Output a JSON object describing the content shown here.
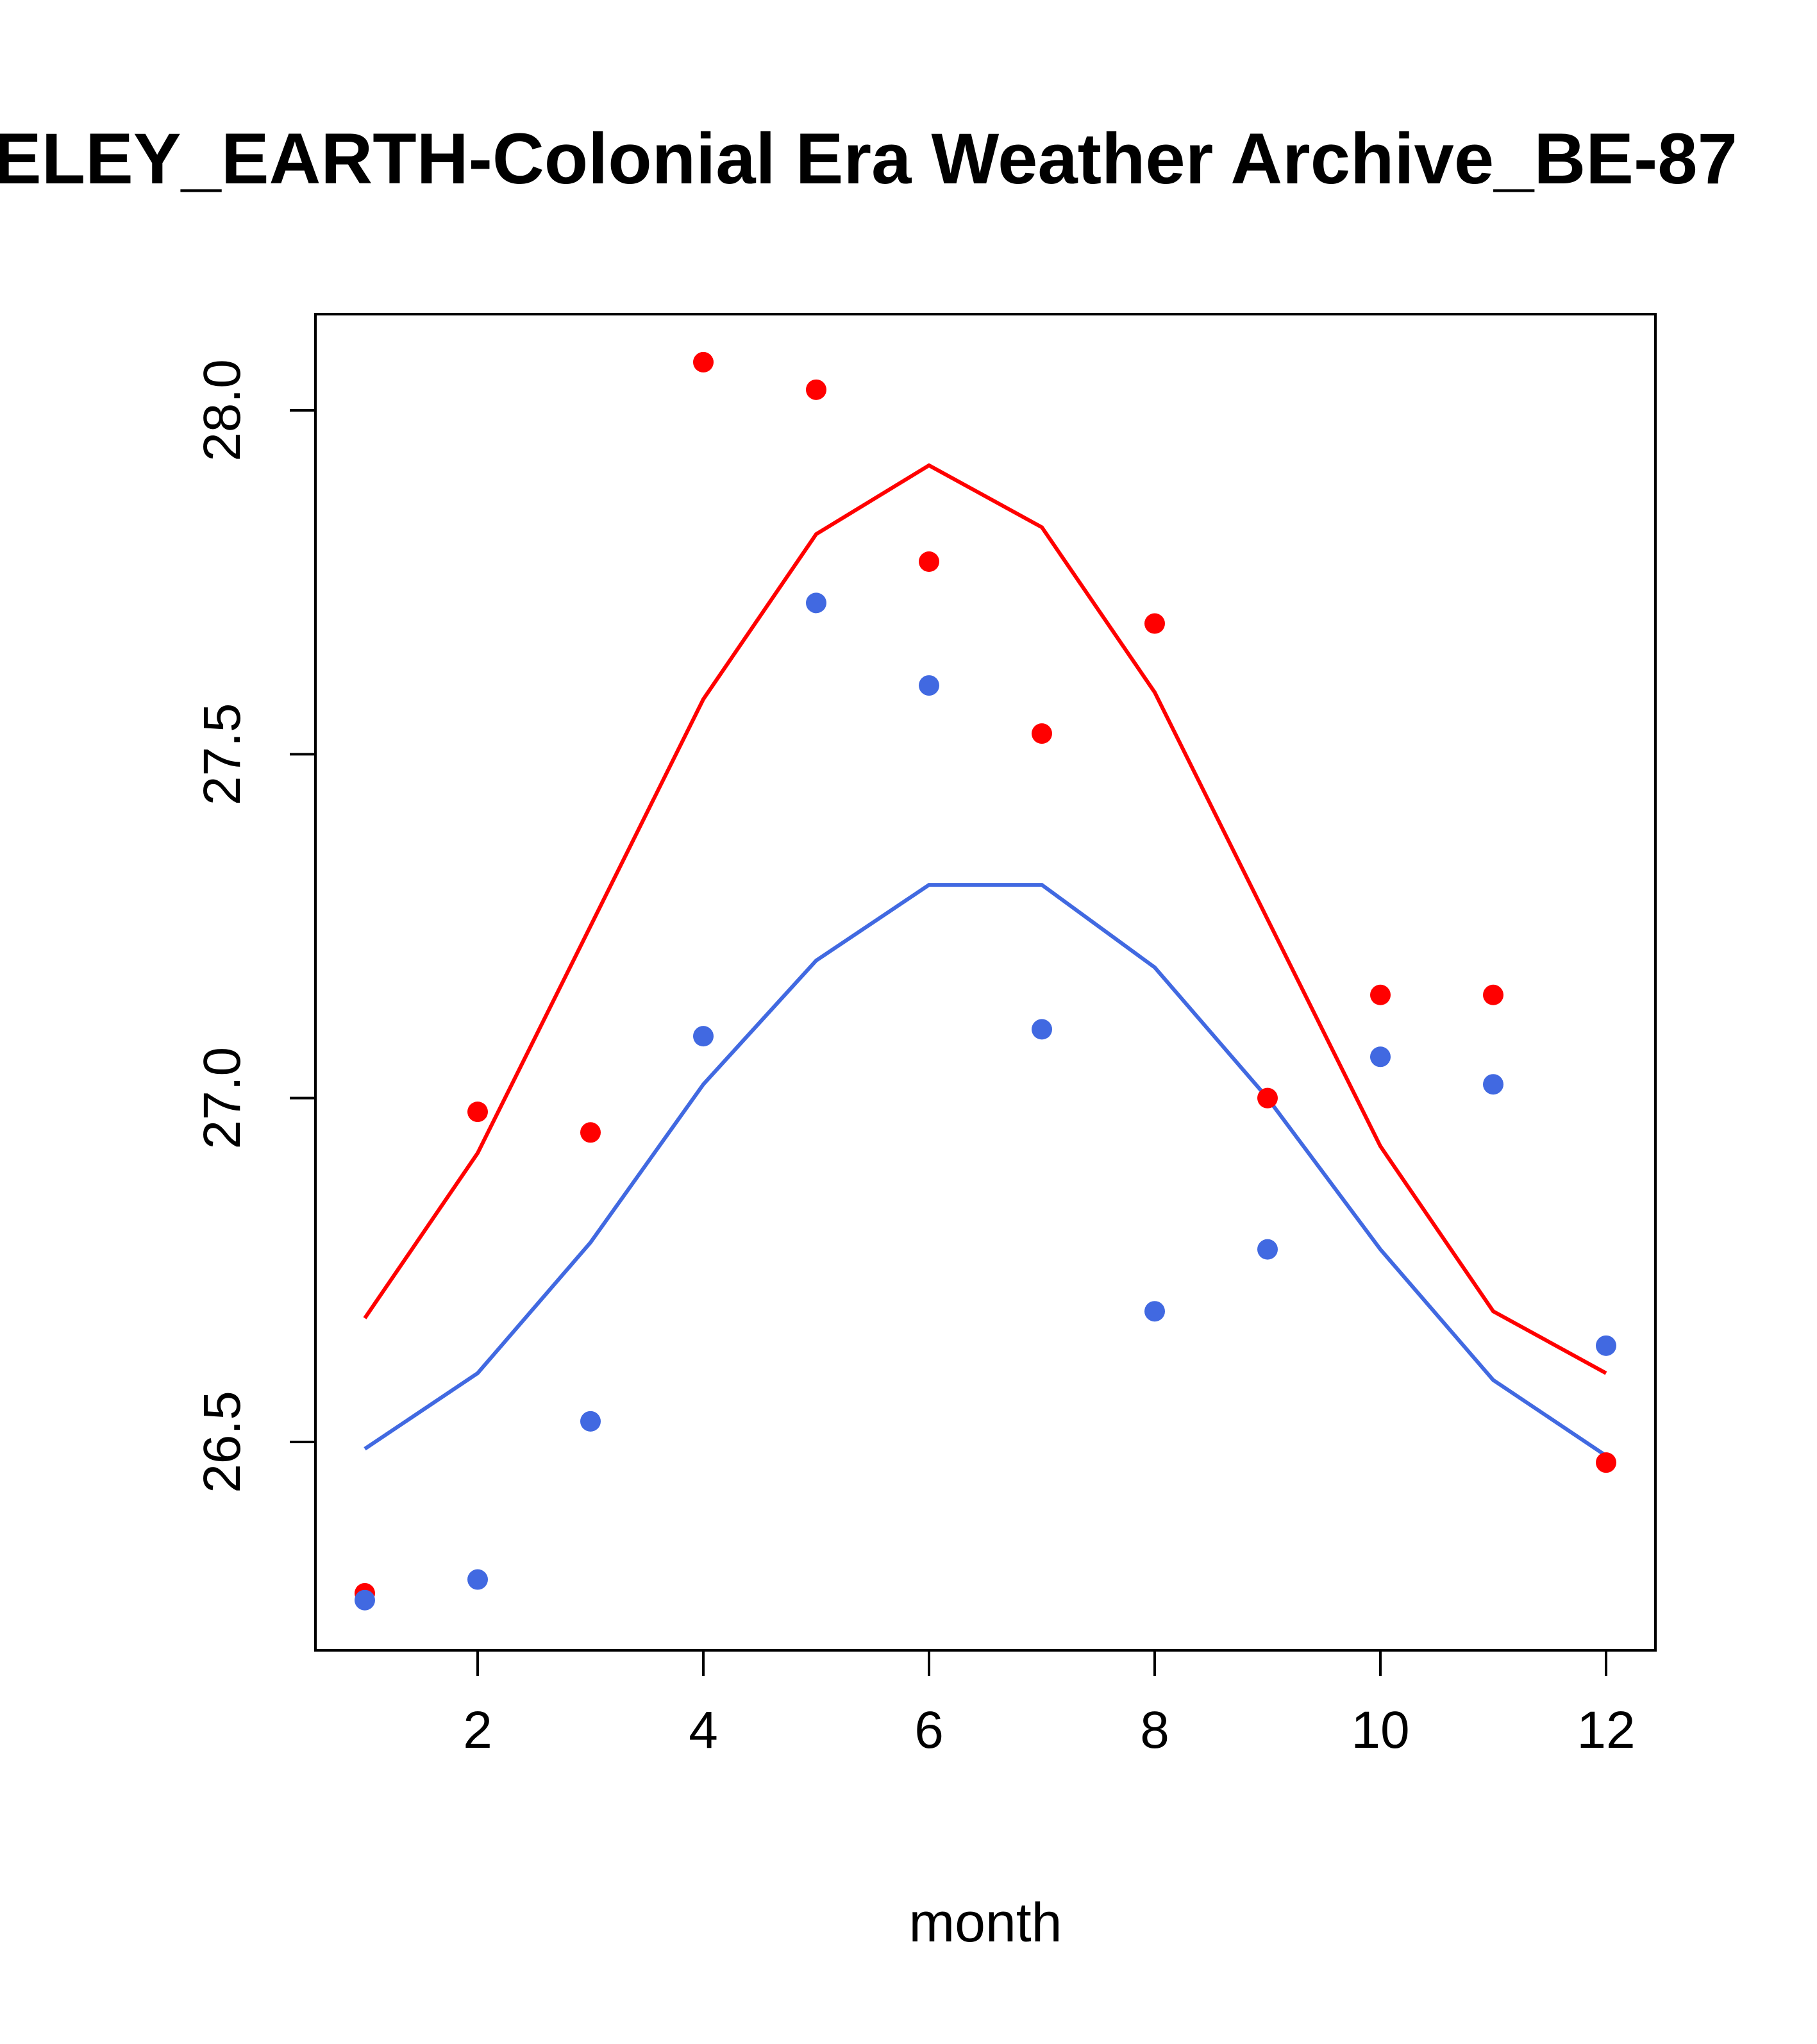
{
  "chart_data": {
    "type": "scatter",
    "title": "ELEY_EARTH-Colonial Era Weather Archive_BE-87",
    "xlabel": "month",
    "ylabel": "",
    "xlim": [
      0.78,
      12.68
    ],
    "ylim": [
      26.2,
      28.14
    ],
    "x_ticks": [
      2,
      4,
      6,
      8,
      10,
      12
    ],
    "x_tick_labels": [
      "2",
      "4",
      "6",
      "8",
      "10",
      "12"
    ],
    "y_ticks": [
      26.5,
      27.0,
      27.5,
      28.0
    ],
    "y_tick_labels": [
      "26.5",
      "27.0",
      "27.5",
      "28.0"
    ],
    "grid": false,
    "x": [
      1,
      2,
      3,
      4,
      5,
      6,
      7,
      8,
      9,
      10,
      11,
      12
    ],
    "series": [
      {
        "name": "red points",
        "kind": "points",
        "color": "#ff0000",
        "values": [
          26.28,
          26.98,
          26.95,
          28.07,
          28.03,
          27.78,
          27.53,
          27.69,
          27.0,
          27.15,
          27.15,
          26.47
        ]
      },
      {
        "name": "blue points",
        "kind": "points",
        "color": "#4169e1",
        "values": [
          26.27,
          26.3,
          26.53,
          27.09,
          27.72,
          27.6,
          27.1,
          26.69,
          26.78,
          27.06,
          27.02,
          26.64
        ]
      },
      {
        "name": "red line",
        "kind": "line",
        "color": "#ff0000",
        "values": [
          26.68,
          26.92,
          27.25,
          27.58,
          27.82,
          27.92,
          27.83,
          27.59,
          27.26,
          26.93,
          26.69,
          26.6
        ]
      },
      {
        "name": "blue line",
        "kind": "line",
        "color": "#4169e1",
        "values": [
          26.49,
          26.6,
          26.79,
          27.02,
          27.2,
          27.31,
          27.31,
          27.19,
          27.0,
          26.78,
          26.59,
          26.48
        ]
      }
    ]
  }
}
